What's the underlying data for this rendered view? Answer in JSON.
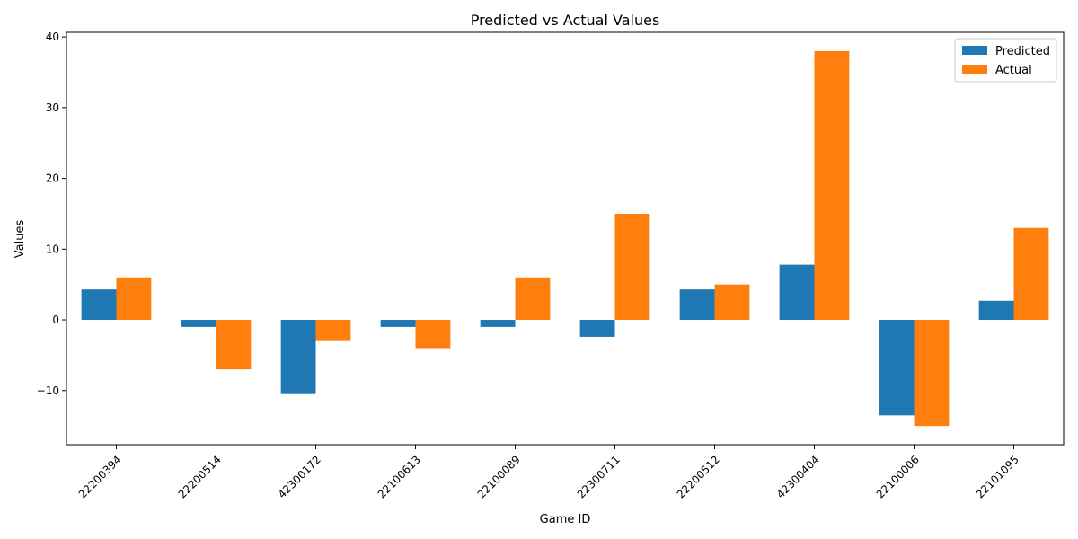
{
  "chart_data": {
    "type": "bar",
    "title": "Predicted vs Actual Values",
    "xlabel": "Game ID",
    "ylabel": "Values",
    "categories": [
      "22200394",
      "22200514",
      "42300172",
      "22100613",
      "22100089",
      "22300711",
      "22200512",
      "42300404",
      "22100006",
      "22101095"
    ],
    "series": [
      {
        "name": "Predicted",
        "color": "#1f77b4",
        "values": [
          4.3,
          -1.0,
          -10.5,
          -1.0,
          -1.0,
          -2.4,
          4.3,
          7.8,
          -13.5,
          2.7
        ]
      },
      {
        "name": "Actual",
        "color": "#ff7f0e",
        "values": [
          6,
          -7,
          -3,
          -4,
          6,
          15,
          5,
          38,
          -15,
          13
        ]
      }
    ],
    "ylim": [
      -17.65,
      40.65
    ],
    "yticks": [
      -10,
      0,
      10,
      20,
      30,
      40
    ],
    "ytick_labels": [
      "−10",
      "0",
      "10",
      "20",
      "30",
      "40"
    ],
    "legend_position": "top-right",
    "grid": false
  }
}
